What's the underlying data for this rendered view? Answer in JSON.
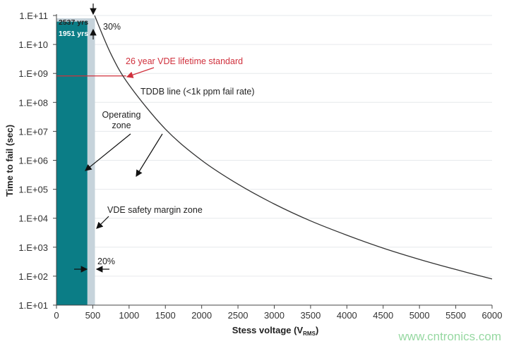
{
  "chart_data": {
    "type": "line",
    "xlabel": "Stess voltage (V",
    "xlabel_sub": "RMS",
    "xlabel_close": ")",
    "ylabel": "Time to fail (sec)",
    "xlim": [
      0,
      6000
    ],
    "ylim": [
      10.0,
      100000000000.0
    ],
    "yscale": "log",
    "grid": "horizontal",
    "x_ticks": [
      "0",
      "500",
      "1000",
      "1500",
      "2000",
      "2500",
      "3000",
      "3500",
      "4000",
      "4500",
      "5000",
      "5500",
      "6000"
    ],
    "y_ticks": [
      "1.E+11",
      "1.E+10",
      "1.E+09",
      "1.E+08",
      "1.E+07",
      "1.E+06",
      "1.E+05",
      "1.E+04",
      "1.E+03",
      "1.E+02",
      "1.E+01"
    ],
    "series": [
      {
        "name": "TDDB line (<1k ppm fail rate)",
        "color": "#333333",
        "x": [
          525,
          750,
          1000,
          1500,
          2000,
          2500,
          3000,
          3500,
          4000,
          4500,
          5000,
          5500,
          6000
        ],
        "y": [
          100000000000.0,
          4700000000.0,
          400000000.0,
          12000000.0,
          1000000.0,
          150000.0,
          31000.0,
          8100.0,
          2600.0,
          930,
          380,
          170,
          80
        ]
      }
    ],
    "zones": [
      {
        "label": "Operating zone",
        "x_range": [
          0,
          425
        ],
        "top_label": "1951 yrs",
        "top_value": 61500000000.0,
        "color": "#0b7d86"
      },
      {
        "label": "VDE safety margin zone",
        "x_range": [
          0,
          530
        ],
        "top_label": "2537 yrs",
        "top_value": 80000000000.0,
        "color": "#c6d3db"
      }
    ],
    "reference_line": {
      "label": "26 year VDE lifetime standard",
      "y": 820000000.0,
      "color": "#d0303c"
    },
    "annotations": {
      "top_margin": "30%",
      "bottom_margin": "20%"
    }
  },
  "watermark": "www.cntronics.com"
}
